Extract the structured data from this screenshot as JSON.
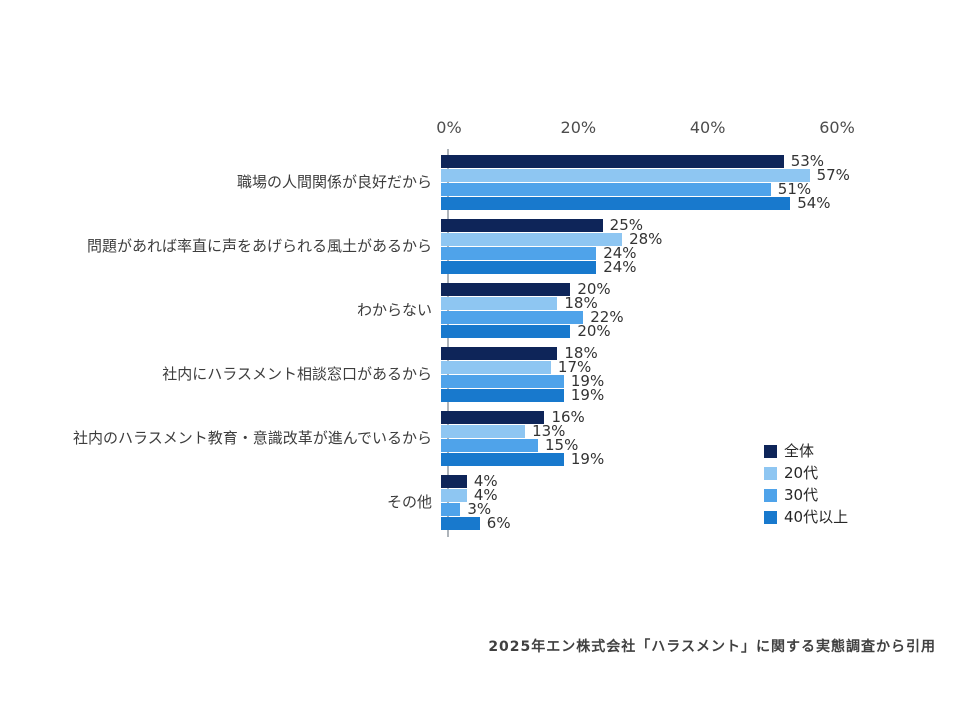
{
  "chart_data": {
    "type": "bar",
    "orientation": "horizontal",
    "title": "",
    "categories": [
      "職場の人間関係が良好だから",
      "問題があれば率直に声をあげられる風土があるから",
      "わからない",
      "社内にハラスメント相談窓口があるから",
      "社内のハラスメント教育・意識改革が進んでいるから",
      "その他"
    ],
    "series": [
      {
        "name": "全体",
        "color": "#0e2559",
        "values": [
          53,
          25,
          20,
          18,
          16,
          4
        ]
      },
      {
        "name": "20代",
        "color": "#8ec6f2",
        "values": [
          57,
          28,
          18,
          17,
          13,
          4
        ]
      },
      {
        "name": "30代",
        "color": "#4fa3ea",
        "values": [
          51,
          24,
          22,
          19,
          15,
          3
        ]
      },
      {
        "name": "40代以上",
        "color": "#1879cd",
        "values": [
          54,
          24,
          20,
          19,
          19,
          6
        ]
      }
    ],
    "x_axis": {
      "min": 0,
      "max": 60,
      "tick_values": [
        0,
        20,
        40,
        60
      ],
      "unit": "%"
    },
    "value_label_suffix": "%",
    "grid": false,
    "legend_position": "right-bottom"
  },
  "footer": {
    "source_text": "2025年エン株式会社「ハラスメント」に関する実態調査から引用"
  }
}
